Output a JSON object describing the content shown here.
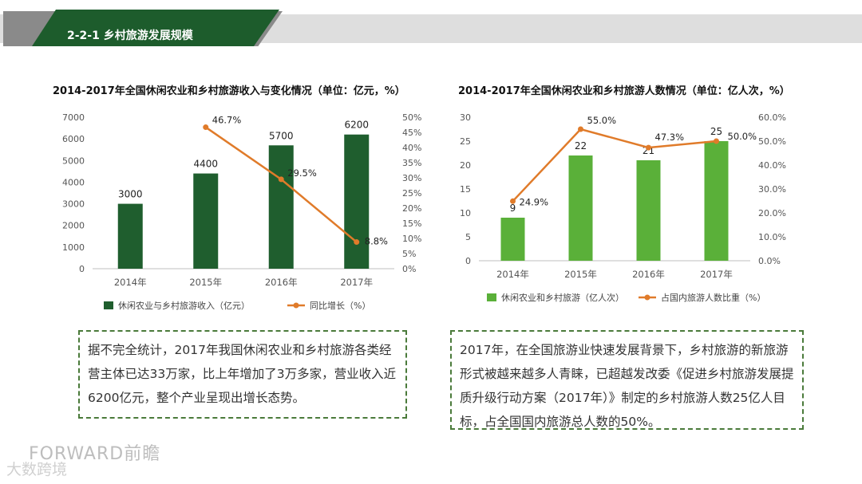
{
  "header": {
    "title": "2-2-1 乡村旅游发展规模"
  },
  "left_chart_title": "2014-2017年全国休闲农业和乡村旅游收入与变化情况（单位：亿元，%）",
  "right_chart_title": "2014-2017年全国休闲农业和乡村旅游人数情况（单位：亿人次，%）",
  "chart_data": [
    {
      "type": "bar+line",
      "title": "2014-2017年全国休闲农业和乡村旅游收入与变化情况（单位：亿元，%）",
      "categories": [
        "2014年",
        "2015年",
        "2016年",
        "2017年"
      ],
      "series": [
        {
          "name": "休闲农业与乡村旅游收入（亿元）",
          "type": "bar",
          "axis": "left",
          "values": [
            3000,
            4400,
            5700,
            6200
          ],
          "labels": [
            "3000",
            "4400",
            "5700",
            "6200"
          ]
        },
        {
          "name": "同比增长（%）",
          "type": "line",
          "axis": "right",
          "values": [
            null,
            46.7,
            29.5,
            8.8
          ],
          "labels": [
            "",
            "46.7%",
            "29.5%",
            "8.8%"
          ]
        }
      ],
      "ylim_left": [
        0,
        7000
      ],
      "yticks_left": [
        0,
        1000,
        2000,
        3000,
        4000,
        5000,
        6000,
        7000
      ],
      "ylim_right": [
        0,
        50
      ],
      "yticks_right_labels": [
        "0%",
        "5%",
        "10%",
        "15%",
        "20%",
        "25%",
        "30%",
        "35%",
        "40%",
        "45%",
        "50%"
      ],
      "bar_color": "#1f5e2e",
      "line_color": "#e07b2a"
    },
    {
      "type": "bar+line",
      "title": "2014-2017年全国休闲农业和乡村旅游人数情况（单位：亿人次，%）",
      "categories": [
        "2014年",
        "2015年",
        "2016年",
        "2017年"
      ],
      "series": [
        {
          "name": "休闲农业和乡村旅游（亿人次）",
          "type": "bar",
          "axis": "left",
          "values": [
            9,
            22,
            21,
            25
          ],
          "labels": [
            "9",
            "22",
            "21",
            "25"
          ]
        },
        {
          "name": "占国内旅游人数比重（%）",
          "type": "line",
          "axis": "right",
          "values": [
            24.9,
            55.0,
            47.3,
            50.0
          ],
          "labels": [
            "24.9%",
            "55.0%",
            "47.3%",
            "50.0%"
          ]
        }
      ],
      "ylim_left": [
        0,
        30
      ],
      "yticks_left": [
        0,
        5,
        10,
        15,
        20,
        25,
        30
      ],
      "ylim_right": [
        0,
        60
      ],
      "yticks_right_labels": [
        "0.0%",
        "10.0%",
        "20.0%",
        "30.0%",
        "40.0%",
        "50.0%",
        "60.0%"
      ],
      "bar_color": "#5ab039",
      "line_color": "#e07b2a"
    }
  ],
  "left_text": "据不完全统计，2017年我国休闲农业和乡村旅游各类经营主体已达33万家，比上年增加了3万多家，营业收入近6200亿元，整个产业呈现出增长态势。",
  "right_text": "2017年，在全国旅游业快速发展背景下，乡村旅游的新旅游形式被越来越多人青睐，已超越发改委《促进乡村旅游发展提质升级行动方案（2017年）》制定的乡村旅游人数25亿人目标，占全国国内旅游总人数的50%。",
  "logo": "FORWARD前瞻",
  "watermark": "大数跨境"
}
